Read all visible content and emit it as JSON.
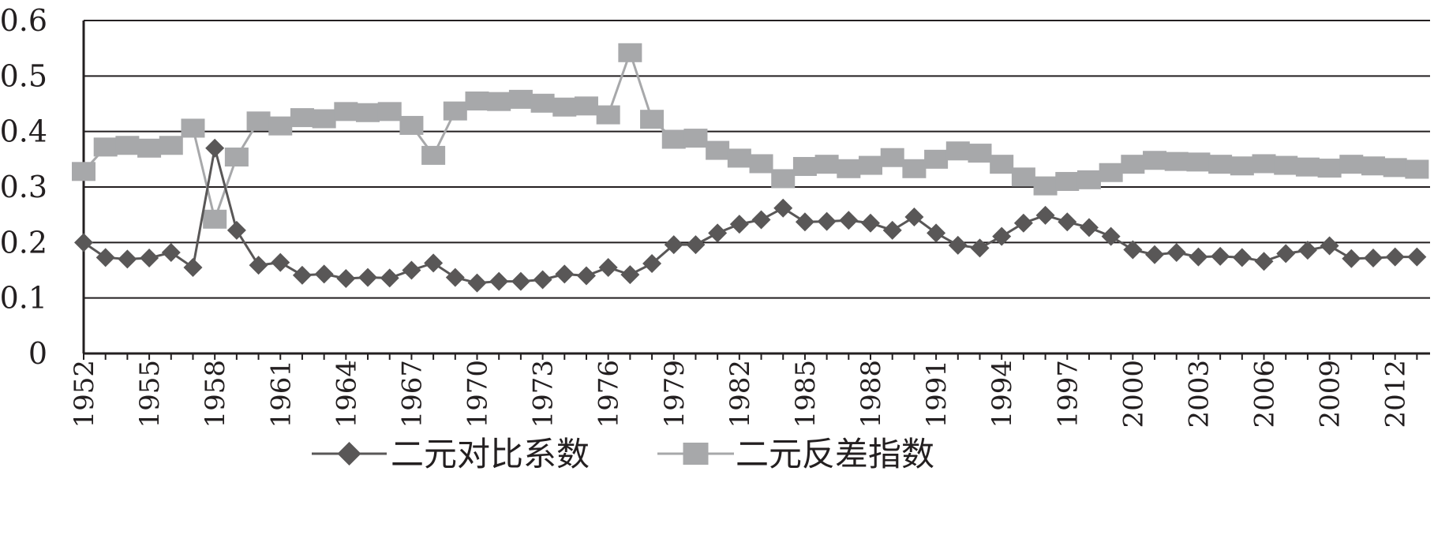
{
  "chart_data": {
    "type": "line",
    "title": "",
    "xlabel": "",
    "ylabel": "",
    "x": [
      1952,
      1953,
      1954,
      1955,
      1956,
      1957,
      1958,
      1959,
      1960,
      1961,
      1962,
      1963,
      1964,
      1965,
      1966,
      1967,
      1968,
      1969,
      1970,
      1971,
      1972,
      1973,
      1974,
      1975,
      1976,
      1977,
      1978,
      1979,
      1980,
      1981,
      1982,
      1983,
      1984,
      1985,
      1986,
      1987,
      1988,
      1989,
      1990,
      1991,
      1992,
      1993,
      1994,
      1995,
      1996,
      1997,
      1998,
      1999,
      2000,
      2001,
      2002,
      2003,
      2004,
      2005,
      2006,
      2007,
      2008,
      2009,
      2010,
      2011,
      2012,
      2013
    ],
    "xlim": [
      1952,
      2013.6
    ],
    "ylim": [
      0,
      0.6
    ],
    "y_ticks": [
      "0",
      "0.1",
      "0.2",
      "0.3",
      "0.4",
      "0.5",
      "0.6"
    ],
    "y_tick_values": [
      0,
      0.1,
      0.2,
      0.3,
      0.4,
      0.5,
      0.6
    ],
    "x_tick_labels": [
      "1952",
      "1955",
      "1958",
      "1961",
      "1964",
      "1967",
      "1970",
      "1973",
      "1976",
      "1979",
      "1982",
      "1985",
      "1988",
      "1991",
      "1994",
      "1997",
      "2000",
      "2003",
      "2006",
      "2009",
      "2012"
    ],
    "x_tick_values": [
      1952,
      1955,
      1958,
      1961,
      1964,
      1967,
      1970,
      1973,
      1976,
      1979,
      1982,
      1985,
      1988,
      1991,
      1994,
      1997,
      2000,
      2003,
      2006,
      2009,
      2012
    ],
    "grid": "horizontal",
    "legend_position": "bottom",
    "series": [
      {
        "name": "二元对比系数",
        "marker": "diamond",
        "color": "#595757",
        "values": [
          0.2,
          0.173,
          0.17,
          0.172,
          0.182,
          0.155,
          0.37,
          0.222,
          0.159,
          0.164,
          0.141,
          0.143,
          0.135,
          0.137,
          0.136,
          0.15,
          0.163,
          0.137,
          0.127,
          0.13,
          0.13,
          0.133,
          0.143,
          0.14,
          0.155,
          0.142,
          0.162,
          0.196,
          0.196,
          0.217,
          0.233,
          0.241,
          0.262,
          0.237,
          0.238,
          0.24,
          0.235,
          0.222,
          0.246,
          0.217,
          0.195,
          0.19,
          0.211,
          0.235,
          0.249,
          0.237,
          0.227,
          0.211,
          0.187,
          0.178,
          0.182,
          0.174,
          0.175,
          0.173,
          0.166,
          0.18,
          0.186,
          0.194,
          0.171,
          0.172,
          0.174,
          0.174
        ]
      },
      {
        "name": "二元反差指数",
        "marker": "square",
        "color": "#a7a8aa",
        "values": [
          0.328,
          0.372,
          0.375,
          0.37,
          0.375,
          0.406,
          0.242,
          0.354,
          0.419,
          0.41,
          0.425,
          0.423,
          0.436,
          0.434,
          0.436,
          0.411,
          0.357,
          0.437,
          0.455,
          0.454,
          0.458,
          0.451,
          0.444,
          0.446,
          0.43,
          0.542,
          0.422,
          0.386,
          0.388,
          0.366,
          0.352,
          0.342,
          0.315,
          0.337,
          0.341,
          0.333,
          0.339,
          0.353,
          0.333,
          0.35,
          0.365,
          0.361,
          0.341,
          0.318,
          0.302,
          0.31,
          0.313,
          0.326,
          0.341,
          0.348,
          0.346,
          0.345,
          0.341,
          0.338,
          0.342,
          0.339,
          0.336,
          0.334,
          0.341,
          0.338,
          0.335,
          0.332
        ]
      }
    ]
  }
}
